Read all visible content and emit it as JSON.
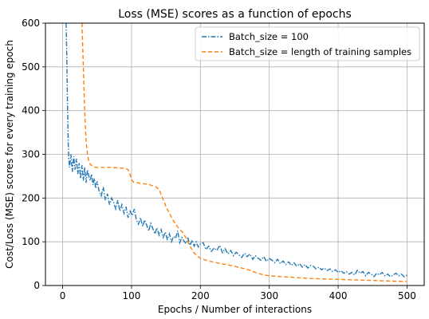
{
  "chart_data": {
    "type": "line",
    "title": "Loss (MSE) scores as a function of epochs",
    "xlabel": "Epochs / Number of interactions",
    "ylabel": "Cost/Loss (MSE) scores for every training epoch",
    "xlim": [
      -25,
      525
    ],
    "ylim": [
      0,
      600
    ],
    "xticks": [
      0,
      100,
      200,
      300,
      400,
      500
    ],
    "yticks": [
      0,
      100,
      200,
      300,
      400,
      500,
      600
    ],
    "grid": true,
    "legend_position": "top-right",
    "series": [
      {
        "name": "Batch_size = 100",
        "color": "#1f77b4",
        "dash": "dashdot",
        "x": [
          5,
          6,
          7,
          8,
          9,
          10,
          12,
          14,
          16,
          18,
          20,
          22,
          24,
          26,
          28,
          30,
          32,
          34,
          36,
          38,
          40,
          42,
          44,
          46,
          48,
          50,
          53,
          56,
          59,
          62,
          65,
          68,
          71,
          74,
          77,
          80,
          83,
          86,
          89,
          92,
          95,
          98,
          101,
          104,
          107,
          110,
          113,
          116,
          119,
          122,
          125,
          128,
          131,
          134,
          137,
          140,
          143,
          146,
          149,
          152,
          155,
          158,
          161,
          164,
          167,
          170,
          173,
          176,
          179,
          182,
          185,
          188,
          191,
          194,
          197,
          200,
          204,
          208,
          212,
          216,
          220,
          224,
          228,
          232,
          236,
          240,
          244,
          248,
          252,
          256,
          260,
          264,
          268,
          272,
          276,
          280,
          284,
          288,
          292,
          296,
          300,
          304,
          308,
          312,
          316,
          320,
          324,
          328,
          332,
          336,
          340,
          344,
          348,
          352,
          356,
          360,
          364,
          368,
          372,
          376,
          380,
          384,
          388,
          392,
          396,
          400,
          404,
          408,
          412,
          416,
          420,
          424,
          428,
          432,
          436,
          440,
          444,
          448,
          452,
          456,
          460,
          464,
          468,
          472,
          476,
          480,
          484,
          488,
          492,
          496,
          500
        ],
        "y": [
          600,
          520,
          420,
          330,
          285,
          270,
          300,
          260,
          295,
          265,
          290,
          255,
          280,
          245,
          275,
          240,
          270,
          235,
          265,
          250,
          240,
          255,
          230,
          245,
          222,
          238,
          215,
          205,
          225,
          195,
          210,
          185,
          200,
          190,
          175,
          195,
          170,
          185,
          165,
          180,
          155,
          170,
          160,
          175,
          150,
          140,
          155,
          135,
          150,
          138,
          125,
          142,
          130,
          118,
          132,
          115,
          128,
          110,
          122,
          105,
          118,
          100,
          112,
          108,
          125,
          98,
          110,
          102,
          96,
          108,
          92,
          104,
          90,
          100,
          88,
          95,
          98,
          82,
          90,
          78,
          86,
          80,
          92,
          75,
          84,
          72,
          80,
          68,
          76,
          70,
          64,
          74,
          66,
          72,
          60,
          68,
          62,
          58,
          66,
          55,
          62,
          58,
          52,
          60,
          50,
          56,
          48,
          54,
          46,
          52,
          44,
          50,
          42,
          48,
          40,
          46,
          44,
          38,
          42,
          36,
          40,
          34,
          38,
          32,
          36,
          30,
          34,
          28,
          32,
          26,
          30,
          24,
          35,
          28,
          32,
          22,
          30,
          26,
          20,
          28,
          24,
          30,
          22,
          26,
          20,
          24,
          28,
          22,
          26,
          20,
          24
        ]
      },
      {
        "name": "Batch_size = length of training samples",
        "color": "#ff7f0e",
        "dash": "dashed",
        "x": [
          28,
          30,
          32,
          34,
          36,
          38,
          40,
          45,
          50,
          60,
          70,
          80,
          90,
          95,
          97,
          99,
          101,
          103,
          108,
          115,
          125,
          135,
          140,
          142,
          145,
          148,
          150,
          155,
          160,
          165,
          170,
          175,
          178,
          181,
          184,
          187,
          190,
          195,
          200,
          210,
          220,
          230,
          240,
          250,
          260,
          270,
          280,
          290,
          300,
          320,
          340,
          360,
          380,
          400,
          420,
          440,
          460,
          480,
          500
        ],
        "y": [
          600,
          500,
          400,
          330,
          300,
          285,
          277,
          271,
          270,
          270,
          270,
          269,
          268,
          265,
          258,
          248,
          240,
          236,
          235,
          233,
          231,
          226,
          220,
          212,
          200,
          190,
          180,
          165,
          150,
          138,
          128,
          120,
          112,
          103,
          92,
          84,
          76,
          68,
          62,
          57,
          53,
          50,
          47,
          44,
          40,
          36,
          30,
          25,
          22,
          20,
          18,
          16,
          15,
          14,
          13,
          12,
          11,
          10,
          9
        ]
      }
    ]
  }
}
